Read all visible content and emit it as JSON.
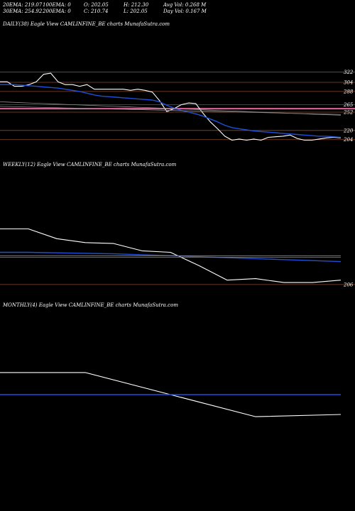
{
  "header": {
    "row1": [
      "20EMA: 219.07",
      "100EMA: 0",
      "O: 202.05",
      "H: 212.30",
      "Avg Vol: 0.268 M"
    ],
    "row2": [
      "30EMA: 254.92",
      "200EMA: 0",
      "C: 210.74",
      "L: 202.05",
      "Day Vol: 0.167 M"
    ]
  },
  "colors": {
    "background": "#000000",
    "price": "#ffffff",
    "ema": "#1f4fd8",
    "level": "#8b4a2b",
    "highlight": "#e8609b",
    "grey": "#8a8a8a"
  },
  "chart_data": [
    {
      "type": "line",
      "title": "DAILY(38) Eagle   View  CAMLINFINE_BE charts MunafaSutra.com",
      "ylim": [
        195,
        330
      ],
      "x": [
        0,
        1,
        2,
        3,
        4,
        5,
        6,
        7,
        8,
        9,
        10,
        11,
        12,
        13,
        14,
        15,
        16,
        17,
        18,
        19,
        20,
        21,
        22,
        23,
        24,
        25,
        26,
        27,
        28,
        29,
        30,
        31,
        32,
        33,
        34,
        35,
        36,
        37,
        38,
        39,
        40,
        41,
        42,
        43,
        44,
        45,
        46,
        47
      ],
      "series": [
        {
          "role": "price",
          "values": [
            305,
            305,
            297,
            297,
            300,
            305,
            318,
            320,
            305,
            300,
            300,
            297,
            300,
            292,
            292,
            292,
            292,
            292,
            290,
            292,
            290,
            287,
            272,
            253,
            258,
            265,
            268,
            267,
            250,
            235,
            223,
            210,
            203,
            205,
            203,
            205,
            203,
            208,
            209,
            210,
            212,
            206,
            203,
            203,
            205,
            207,
            208,
            207
          ]
        },
        {
          "role": "ema",
          "values": [
            300,
            300,
            300,
            299,
            298,
            297,
            296,
            295,
            294,
            292,
            290,
            288,
            285,
            282,
            280,
            279,
            278,
            277,
            276,
            275,
            274,
            273,
            270,
            264,
            259,
            255,
            252,
            249,
            245,
            240,
            235,
            229,
            225,
            223,
            221,
            219,
            218,
            217,
            216,
            215,
            214,
            213,
            212,
            211,
            210,
            210,
            209,
            208
          ]
        },
        {
          "role": "grey-a",
          "values": [
            270,
            269.5,
            269,
            268.5,
            268,
            267.5,
            267,
            266.5,
            266,
            265.5,
            265,
            264.5,
            264,
            263.5,
            263,
            262.5,
            262,
            261.5,
            261,
            260.5,
            260,
            259.5,
            259,
            258.5,
            258,
            257.5,
            257,
            256.5,
            256,
            255.5,
            255,
            254.5,
            254,
            253.5,
            253,
            252.5,
            252,
            251.5,
            251,
            250.5,
            250,
            249.5,
            249,
            248.5,
            248,
            247.5,
            247,
            246.5
          ]
        },
        {
          "role": "grey-b",
          "values": [
            262,
            261.7,
            261.4,
            261.1,
            260.8,
            260.5,
            260.2,
            259.9,
            259.6,
            259.3,
            259,
            258.7,
            258.4,
            258.1,
            257.8,
            257.5,
            257.2,
            256.9,
            256.6,
            256.3,
            256,
            255.7,
            255.4,
            255.1,
            254.8,
            254.5,
            254.2,
            253.9,
            253.6,
            253.3,
            253,
            252.7,
            252.4,
            252.1,
            251.8,
            251.5,
            251.2,
            250.9,
            250.6,
            250.3,
            250,
            249.7,
            249.4,
            249.1,
            248.8,
            248.5,
            248.2,
            247.9
          ]
        }
      ],
      "levels": [
        {
          "value": 322,
          "label": "322"
        },
        {
          "value": 304,
          "label": "304"
        },
        {
          "value": 288,
          "label": "288"
        },
        {
          "value": 265,
          "label": "265"
        },
        {
          "value": 258,
          "label": "",
          "highlight": true
        },
        {
          "value": 252,
          "label": "252"
        },
        {
          "value": 220,
          "label": "220"
        },
        {
          "value": 204,
          "label": "204"
        }
      ]
    },
    {
      "type": "line",
      "title": "WEEKLY(12) Eagle   View  CAMLINFINE_BE charts MunafaSutra.com",
      "ylim": [
        200,
        360
      ],
      "x": [
        0,
        1,
        2,
        3,
        4,
        5,
        6,
        7,
        8,
        9,
        10,
        11,
        12
      ],
      "series": [
        {
          "role": "price",
          "values": [
            320,
            320,
            300,
            292,
            290,
            275,
            272,
            245,
            215,
            218,
            210,
            210,
            215
          ]
        },
        {
          "role": "ema",
          "values": [
            272,
            272,
            271,
            270,
            269,
            267,
            265,
            263,
            261,
            259,
            257,
            255,
            253
          ]
        },
        {
          "role": "grey-a",
          "values": [
            265,
            265,
            265,
            265,
            265,
            265,
            265,
            265,
            265,
            265,
            265,
            265,
            265
          ]
        },
        {
          "role": "grey-b",
          "values": [
            262,
            262,
            262,
            262,
            262,
            262,
            262,
            262,
            262,
            262,
            262,
            262,
            262
          ]
        }
      ],
      "levels": [
        {
          "value": 206,
          "label": "206"
        }
      ]
    },
    {
      "type": "line",
      "title": "MONTHLY(4) Eagle   View  CAMLINFINE_BE charts MunafaSutra.com",
      "ylim": [
        180,
        360
      ],
      "x": [
        0,
        1,
        2,
        3,
        4
      ],
      "series": [
        {
          "role": "price",
          "values": [
            320,
            320,
            270,
            220,
            225
          ]
        },
        {
          "role": "ema",
          "values": [
            270,
            270,
            270,
            270,
            270
          ]
        }
      ],
      "levels": []
    }
  ]
}
